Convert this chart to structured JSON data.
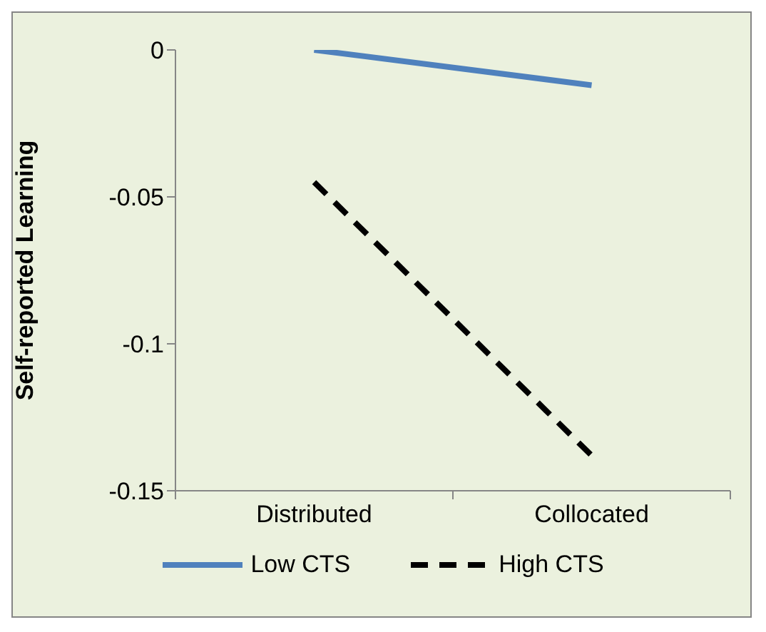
{
  "chart_data": {
    "type": "line",
    "ylabel": "Self-reported Learning",
    "categories": [
      "Distributed",
      "Collocated"
    ],
    "series": [
      {
        "name": "Low CTS",
        "color": "#4f81bd",
        "values": [
          0,
          -0.012
        ],
        "line_style": "solid"
      },
      {
        "name": "High CTS",
        "color": "#000000",
        "values": [
          -0.045,
          -0.138
        ],
        "line_style": "dashed"
      }
    ],
    "ylim": [
      -0.15,
      0
    ],
    "yticks": [
      0,
      -0.05,
      -0.1,
      -0.15
    ],
    "grid": false,
    "legend": "bottom",
    "marker": "none"
  }
}
